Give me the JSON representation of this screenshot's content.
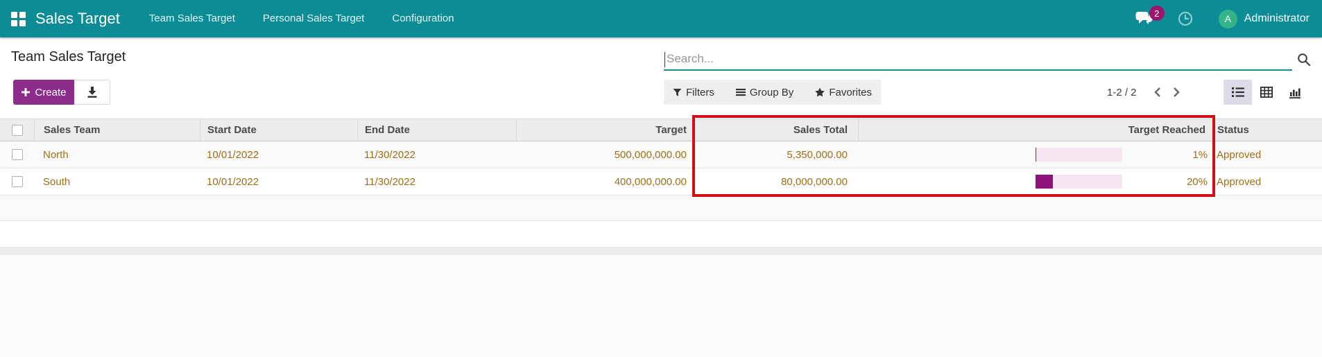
{
  "topbar": {
    "app_name": "Sales Target",
    "menus": [
      "Team Sales Target",
      "Personal Sales Target",
      "Configuration"
    ],
    "messages_badge": "2",
    "user_initial": "A",
    "user_name": "Administrator"
  },
  "page": {
    "breadcrumb": "Team Sales Target"
  },
  "actions": {
    "create_label": "Create"
  },
  "search": {
    "placeholder": "Search..."
  },
  "filters": {
    "filters_label": "Filters",
    "group_by_label": "Group By",
    "favorites_label": "Favorites"
  },
  "pager": {
    "range": "1-2 / 2"
  },
  "table": {
    "columns": [
      "Sales Team",
      "Start Date",
      "End Date",
      "Target",
      "Sales Total",
      "Target Reached",
      "Status"
    ],
    "rows": [
      {
        "sales_team": "North",
        "start_date": "10/01/2022",
        "end_date": "11/30/2022",
        "target": "500,000,000.00",
        "sales_total": "5,350,000.00",
        "target_reached_pct": 1,
        "target_reached_label": "1%",
        "status": "Approved"
      },
      {
        "sales_team": "South",
        "start_date": "10/01/2022",
        "end_date": "11/30/2022",
        "target": "400,000,000.00",
        "sales_total": "80,000,000.00",
        "target_reached_pct": 20,
        "target_reached_label": "20%",
        "status": "Approved"
      }
    ]
  },
  "colors": {
    "topbar_teal": "#0c8c95",
    "primary_purple": "#8c2d8c",
    "progress_fill": "#8c127c",
    "progress_track": "#f7e4f1",
    "data_text_gold": "#9c6f15",
    "highlight_red": "#d40d12",
    "avatar_green": "#35b489",
    "badge_magenta": "#9b156f"
  }
}
